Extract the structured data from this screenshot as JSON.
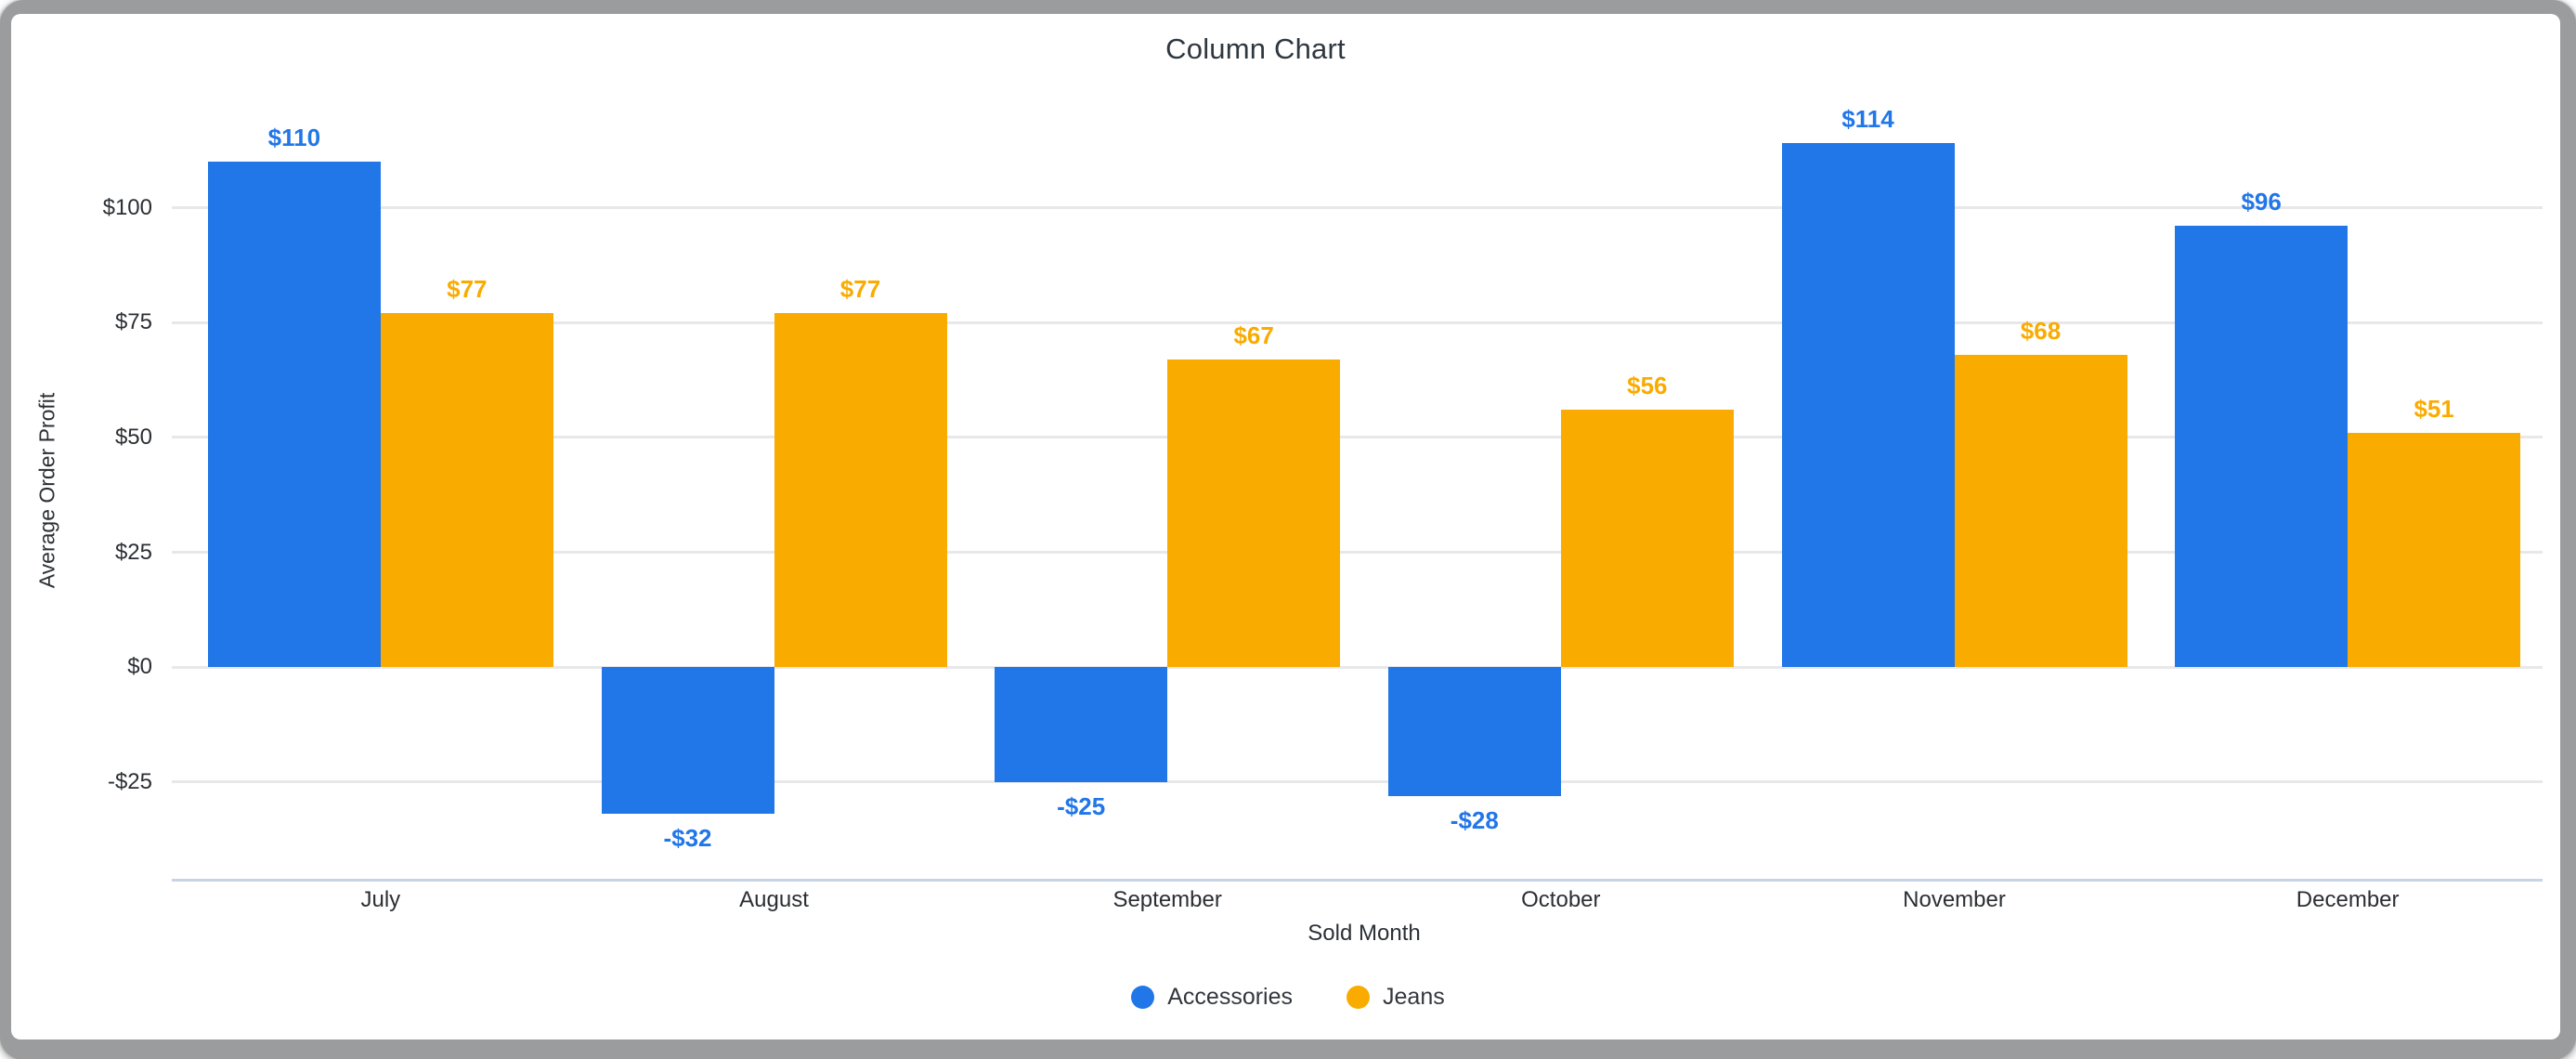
{
  "window": {
    "frame_color": "#9b9c9e",
    "canvas_color": "#ffffff"
  },
  "chart_data": {
    "type": "bar",
    "title": "Column Chart",
    "xlabel": "Sold Month",
    "ylabel": "Average Order Profit",
    "categories": [
      "July",
      "August",
      "September",
      "October",
      "November",
      "December"
    ],
    "series": [
      {
        "name": "Accessories",
        "color": "#2176e8",
        "values": [
          110,
          -32,
          -25,
          -28,
          114,
          96
        ],
        "data_labels": [
          "$110",
          "-$32",
          "-$25",
          "-$28",
          "$114",
          "$96"
        ]
      },
      {
        "name": "Jeans",
        "color": "#f9ab00",
        "values": [
          77,
          77,
          67,
          56,
          68,
          51
        ],
        "data_labels": [
          "$77",
          "$77",
          "$67",
          "$56",
          "$68",
          "$51"
        ]
      }
    ],
    "y_ticks": [
      {
        "value": 100,
        "label": "$100"
      },
      {
        "value": 75,
        "label": "$75"
      },
      {
        "value": 50,
        "label": "$50"
      },
      {
        "value": 25,
        "label": "$25"
      },
      {
        "value": 0,
        "label": "$0"
      },
      {
        "value": -25,
        "label": "-$25"
      }
    ],
    "ylim": [
      -46.3,
      123
    ],
    "grid": true,
    "gridline_color": "#e8e8ea",
    "axis_line_color": "#c9d3e7",
    "legend_position": "bottom-center"
  }
}
